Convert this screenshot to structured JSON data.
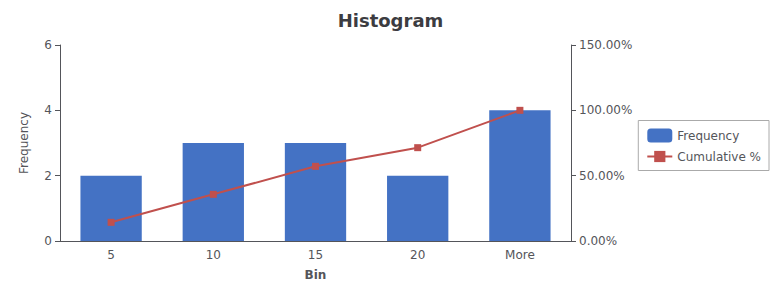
{
  "chart_data": {
    "type": "bar",
    "title": "Histogram",
    "categories": [
      "5",
      "10",
      "15",
      "20",
      "More"
    ],
    "xlabel": "Bin",
    "ylabel": "Frequency",
    "series": [
      {
        "name": "Frequency",
        "type": "bar",
        "color": "#4472C4",
        "values": [
          2,
          3,
          3,
          2,
          4
        ]
      },
      {
        "name": "Cumulative %",
        "type": "line",
        "marker": "square",
        "color": "#C0504D",
        "axis": "y2",
        "values": [
          14.29,
          35.71,
          57.14,
          71.43,
          100.0
        ]
      }
    ],
    "ylim": [
      0,
      6
    ],
    "yticks": [
      0,
      2,
      4,
      6
    ],
    "y2lim": [
      0,
      150
    ],
    "y2ticks": [
      {
        "value": 0,
        "label": "0.00%"
      },
      {
        "value": 50,
        "label": "50.00%"
      },
      {
        "value": 100,
        "label": "100.00%"
      },
      {
        "value": 150,
        "label": "150.00%"
      }
    ],
    "grid": false,
    "legend": "right"
  }
}
